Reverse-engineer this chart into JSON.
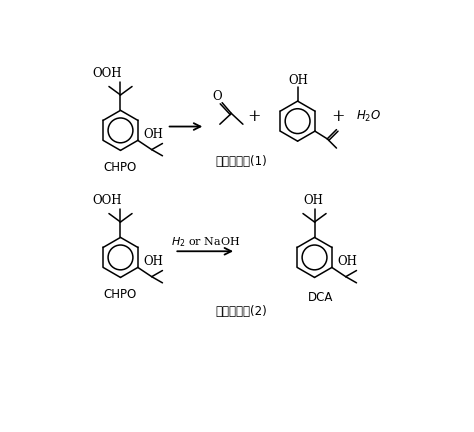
{
  "bg_color": "#ffffff",
  "line_color": "#000000",
  "reaction1_label": "反应方程式(1)",
  "reaction2_label": "反应方程式(2)",
  "chpo_label": "CHPO",
  "dca_label": "DCA",
  "font_size": 8.5
}
